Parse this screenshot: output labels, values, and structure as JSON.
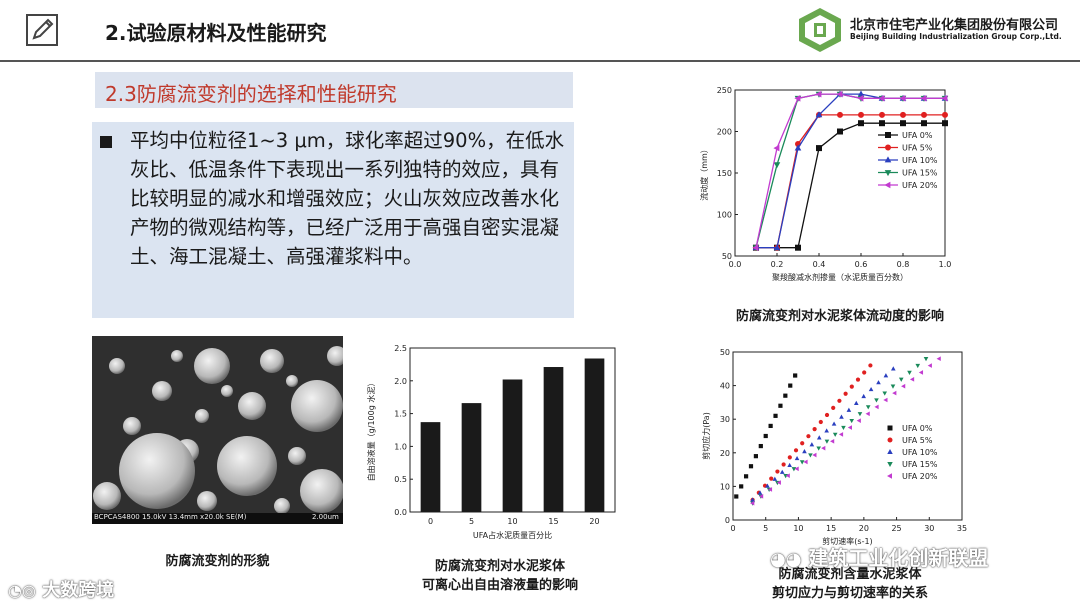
{
  "header": {
    "title": "2.试验原材料及性能研究",
    "logo_cn": "北京市住宅产业化集团股份有限公司",
    "logo_en": "Beijing Building Industrialization Group Corp.,Ltd."
  },
  "section": {
    "title": "2.3防腐流变剂的选择和性能研究"
  },
  "bullet": {
    "text": "平均中位粒径1~3 μm，球化率超过90%，在低水灰比、低温条件下表现出一系列独特的效应，具有比较明显的减水和增强效应；火山灰效应改善水化产物的微观结构等，已经广泛用于高强自密实混凝土、海工混凝土、高强灌浆料中。"
  },
  "sem": {
    "info": "BCPCAS4800 15.0kV 13.4mm x20.0k SE(M)",
    "scale": "2.00um",
    "caption": "防腐流变剂的形貌"
  },
  "captions": {
    "bar": "防腐流变剂对水泥浆体\n可离心出自由溶液量的影响",
    "fluidity": "防腐流变剂对水泥浆体流动度的影响",
    "shear": "防腐流变剂含量水泥浆体\n剪切应力与剪切速率的关系"
  },
  "watermarks": {
    "left": "大数跨境",
    "right": "建筑工业化创新联盟"
  },
  "chart_data": [
    {
      "id": "bar",
      "type": "bar",
      "categories": [
        "0",
        "5",
        "10",
        "15",
        "20"
      ],
      "values": [
        1.37,
        1.66,
        2.02,
        2.21,
        2.34
      ],
      "xlabel": "UFA占水泥质量百分比",
      "ylabel": "自由溶液量（g/100g 水泥）",
      "ylim": [
        0,
        2.5
      ],
      "yticks": [
        "0.0",
        "0.5",
        "1.0",
        "1.5",
        "2.0",
        "2.5"
      ],
      "grid": false
    },
    {
      "id": "fluidity",
      "type": "line",
      "xlabel": "聚羧酸减水剂掺量（水泥质量百分数）",
      "ylabel": "流动度（mm）",
      "xlim": [
        0.0,
        1.0
      ],
      "ylim": [
        50,
        250
      ],
      "xticks": [
        "0.0",
        "0.2",
        "0.4",
        "0.6",
        "0.8",
        "1.0"
      ],
      "yticks": [
        "50",
        "100",
        "150",
        "200",
        "250"
      ],
      "x": [
        0.1,
        0.2,
        0.3,
        0.4,
        0.5,
        0.6,
        0.7,
        0.8,
        0.9,
        1.0
      ],
      "legend_position": "right",
      "series": [
        {
          "name": "UFA 0%",
          "marker": "square",
          "color": "#111111",
          "values": [
            60,
            60,
            60,
            180,
            200,
            210,
            210,
            210,
            210,
            210
          ]
        },
        {
          "name": "UFA 5%",
          "marker": "circle",
          "color": "#e02020",
          "values": [
            60,
            60,
            185,
            220,
            220,
            220,
            220,
            220,
            220,
            220
          ]
        },
        {
          "name": "UFA 10%",
          "marker": "triangle-up",
          "color": "#2a3fbf",
          "values": [
            60,
            60,
            180,
            220,
            245,
            245,
            240,
            240,
            240,
            240
          ]
        },
        {
          "name": "UFA 15%",
          "marker": "triangle-down",
          "color": "#1a8a5a",
          "values": [
            60,
            160,
            240,
            245,
            245,
            240,
            240,
            240,
            240,
            240
          ]
        },
        {
          "name": "UFA 20%",
          "marker": "triangle-left",
          "color": "#c23bd0",
          "values": [
            60,
            180,
            240,
            245,
            245,
            240,
            240,
            240,
            240,
            240
          ]
        }
      ]
    },
    {
      "id": "shear",
      "type": "scatter",
      "xlabel": "剪切速率(s-1)",
      "ylabel": "剪切应力(Pa)",
      "xlim": [
        0,
        35
      ],
      "ylim": [
        0,
        50
      ],
      "xticks": [
        "0",
        "5",
        "10",
        "15",
        "20",
        "25",
        "30",
        "35"
      ],
      "yticks": [
        "0",
        "10",
        "20",
        "30",
        "40",
        "50"
      ],
      "legend_position": "right",
      "series": [
        {
          "name": "UFA 0%",
          "marker": "square",
          "color": "#111111",
          "x0": 0.5,
          "x1": 9.5,
          "y0": 7,
          "y1": 43,
          "n": 13
        },
        {
          "name": "UFA 5%",
          "marker": "circle",
          "color": "#e02020",
          "x0": 3,
          "x1": 21,
          "y0": 6,
          "y1": 46,
          "n": 20
        },
        {
          "name": "UFA 10%",
          "marker": "triangle-up",
          "color": "#2a3fbf",
          "x0": 3,
          "x1": 24.5,
          "y0": 6,
          "y1": 45,
          "n": 20
        },
        {
          "name": "UFA 15%",
          "marker": "triangle-down",
          "color": "#1a8a5a",
          "x0": 3,
          "x1": 29.5,
          "y0": 5,
          "y1": 48,
          "n": 22
        },
        {
          "name": "UFA 20%",
          "marker": "triangle-left",
          "color": "#c23bd0",
          "x0": 3,
          "x1": 31.5,
          "y0": 5,
          "y1": 48,
          "n": 22
        }
      ]
    }
  ]
}
